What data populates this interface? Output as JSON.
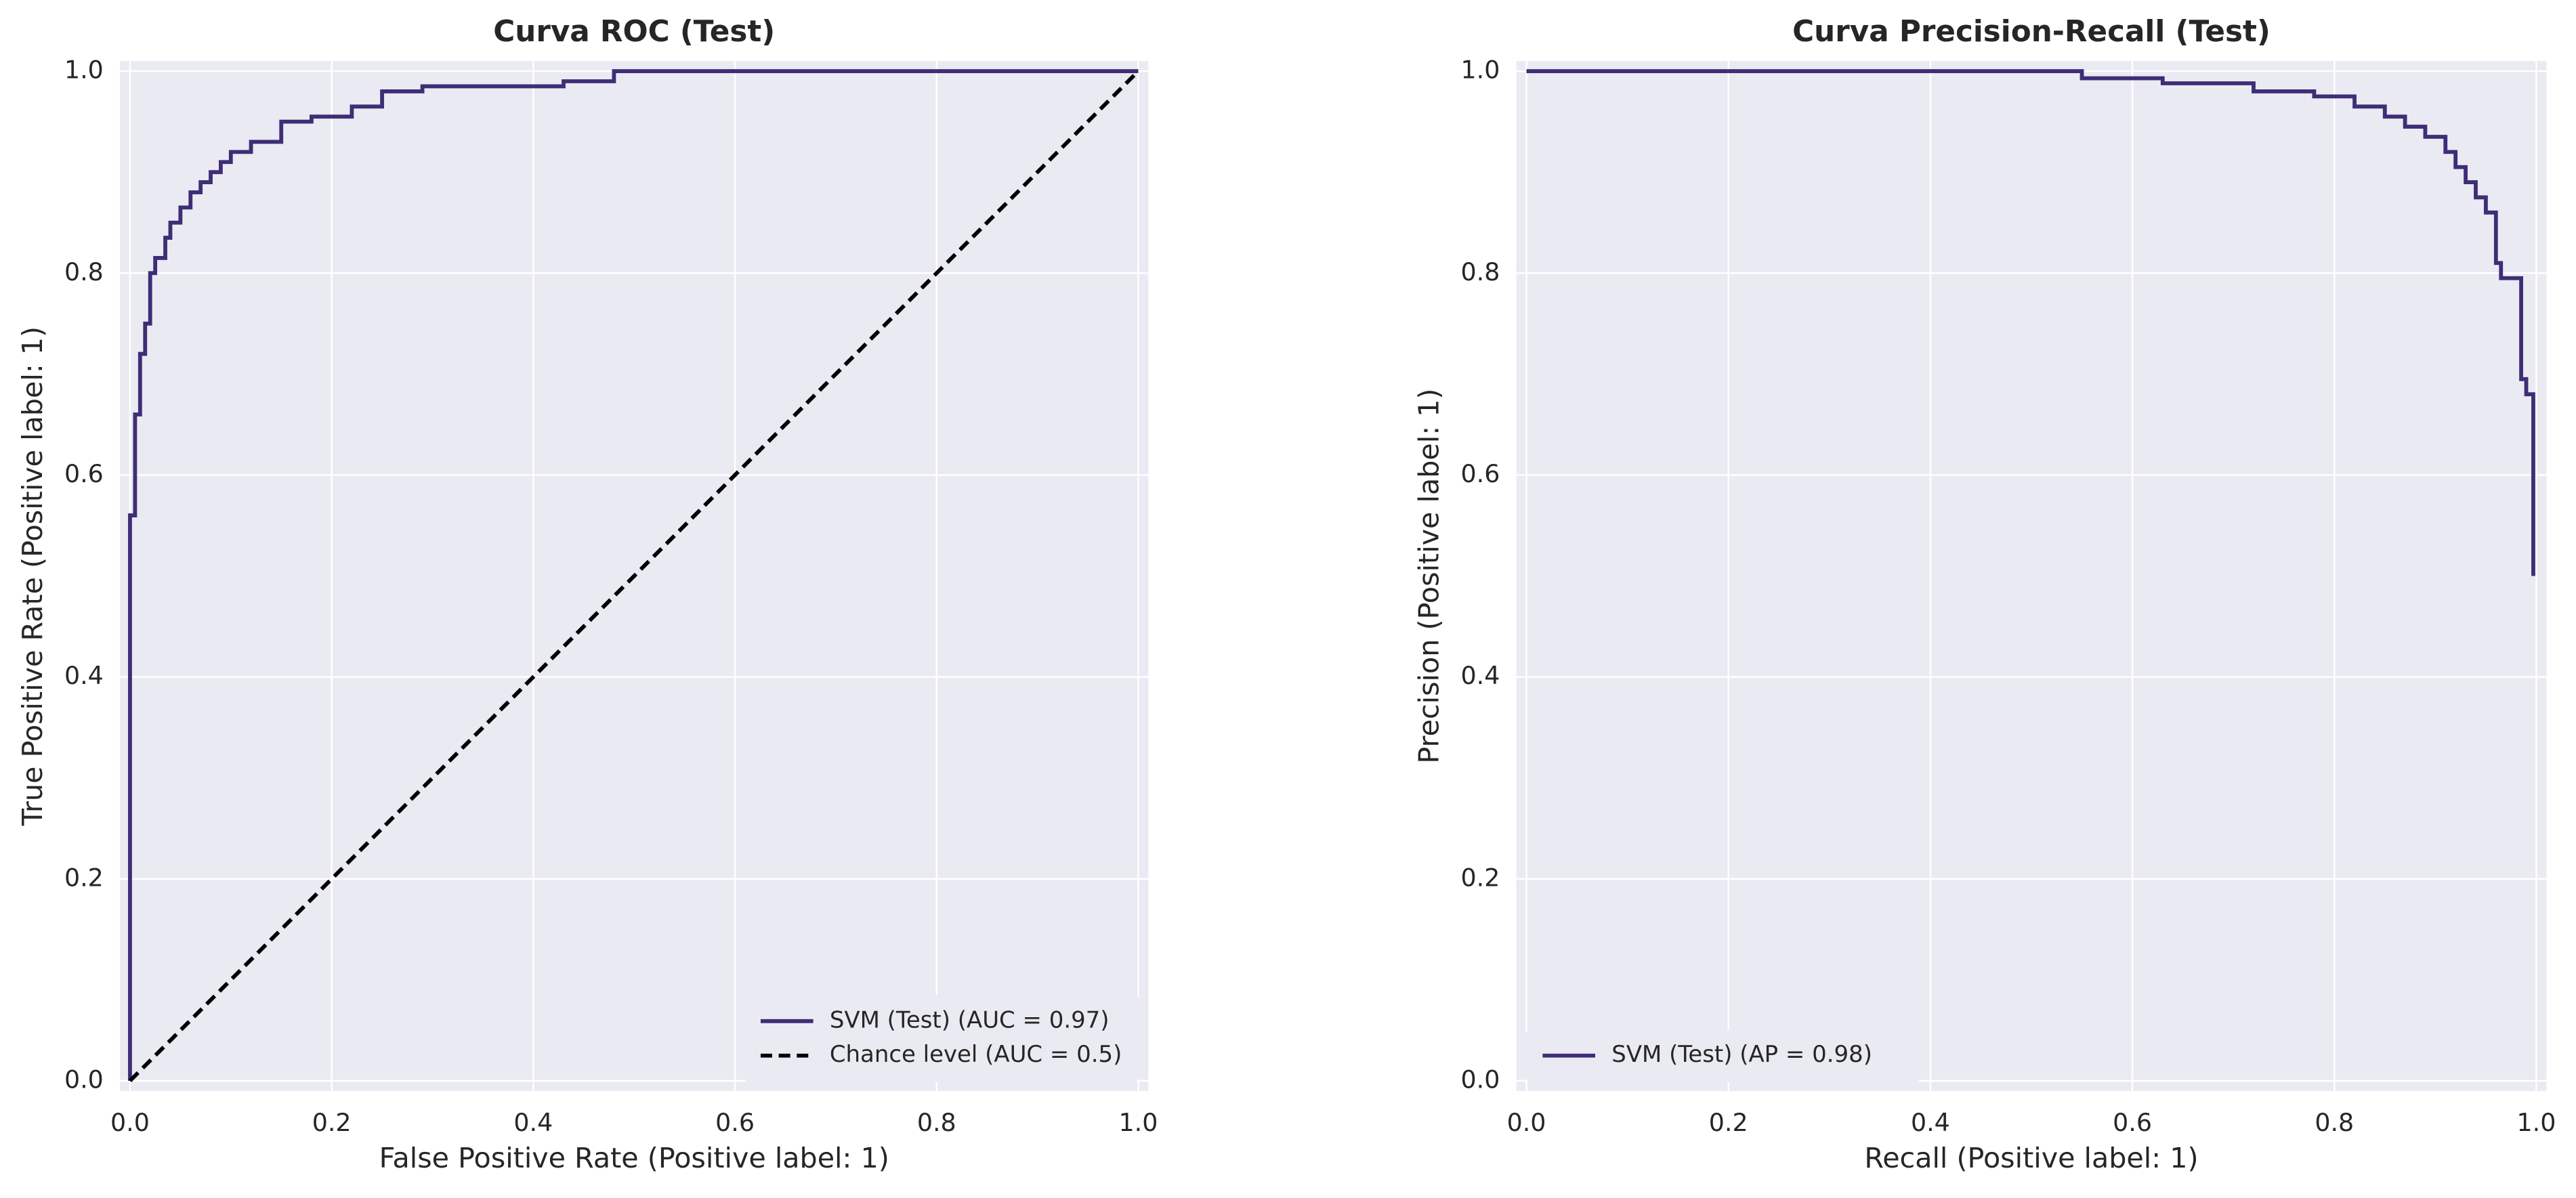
{
  "chart_data": [
    {
      "type": "line",
      "title": "Curva ROC (Test)",
      "xlabel": "False Positive Rate (Positive label: 1)",
      "ylabel": "True Positive Rate (Positive label: 1)",
      "xlim": [
        -0.01,
        1.01
      ],
      "ylim": [
        -0.01,
        1.01
      ],
      "xticks": [
        {
          "value": 0,
          "label": "0.0"
        },
        0.2,
        0.4,
        0.6,
        0.8,
        {
          "value": 1,
          "label": "1.0"
        }
      ],
      "yticks": [
        {
          "value": 0,
          "label": "0.0"
        },
        0.2,
        0.4,
        0.6,
        0.8,
        {
          "value": 1,
          "label": "1.0"
        }
      ],
      "grid": true,
      "legend": "lower right",
      "series": [
        {
          "name": "SVM (Test) (AUC = 0.97)",
          "color": "#3f2d76",
          "linestyle": "solid",
          "x": [
            0,
            0,
            0.005,
            0.005,
            0.01,
            0.01,
            0.015,
            0.015,
            0.02,
            0.02,
            0.025,
            0.025,
            0.035,
            0.035,
            0.04,
            0.04,
            0.05,
            0.05,
            0.06,
            0.06,
            0.07,
            0.07,
            0.08,
            0.08,
            0.09,
            0.09,
            0.1,
            0.1,
            0.12,
            0.12,
            0.15,
            0.15,
            0.18,
            0.18,
            0.22,
            0.22,
            0.25,
            0.25,
            0.29,
            0.29,
            0.43,
            0.43,
            0.48,
            0.48,
            1
          ],
          "values": [
            0,
            0.56,
            0.56,
            0.66,
            0.66,
            0.72,
            0.72,
            0.75,
            0.75,
            0.8,
            0.8,
            0.815,
            0.815,
            0.835,
            0.835,
            0.85,
            0.85,
            0.865,
            0.865,
            0.88,
            0.88,
            0.89,
            0.89,
            0.9,
            0.9,
            0.91,
            0.91,
            0.92,
            0.92,
            0.93,
            0.93,
            0.95,
            0.95,
            0.955,
            0.955,
            0.965,
            0.965,
            0.98,
            0.98,
            0.985,
            0.985,
            0.99,
            0.99,
            1,
            1
          ]
        },
        {
          "name": "Chance level (AUC = 0.5)",
          "color": "#000000",
          "linestyle": "dashed",
          "x": [
            0,
            1
          ],
          "values": [
            0,
            1
          ]
        }
      ]
    },
    {
      "type": "line",
      "title": "Curva Precision-Recall (Test)",
      "xlabel": "Recall (Positive label: 1)",
      "ylabel": "Precision (Positive label: 1)",
      "xlim": [
        -0.01,
        1.01
      ],
      "ylim": [
        -0.01,
        1.01
      ],
      "xticks": [
        {
          "value": 0,
          "label": "0.0"
        },
        0.2,
        0.4,
        0.6,
        0.8,
        {
          "value": 1,
          "label": "1.0"
        }
      ],
      "yticks": [
        {
          "value": 0,
          "label": "0.0"
        },
        0.2,
        0.4,
        0.6,
        0.8,
        {
          "value": 1,
          "label": "1.0"
        }
      ],
      "grid": true,
      "legend": "lower left",
      "series": [
        {
          "name": "SVM (Test) (AP = 0.98)",
          "color": "#3f2d76",
          "linestyle": "solid",
          "x": [
            0,
            0.55,
            0.55,
            0.63,
            0.63,
            0.72,
            0.72,
            0.78,
            0.78,
            0.82,
            0.82,
            0.85,
            0.85,
            0.87,
            0.87,
            0.89,
            0.89,
            0.91,
            0.91,
            0.92,
            0.92,
            0.93,
            0.93,
            0.94,
            0.94,
            0.95,
            0.95,
            0.96,
            0.96,
            0.965,
            0.965,
            0.985,
            0.985,
            0.99,
            0.99,
            0.997,
            0.997
          ],
          "values": [
            1,
            1,
            0.993,
            0.993,
            0.988,
            0.988,
            0.98,
            0.98,
            0.975,
            0.975,
            0.965,
            0.965,
            0.955,
            0.955,
            0.945,
            0.945,
            0.935,
            0.935,
            0.92,
            0.92,
            0.905,
            0.905,
            0.89,
            0.89,
            0.875,
            0.875,
            0.86,
            0.86,
            0.81,
            0.81,
            0.795,
            0.795,
            0.695,
            0.695,
            0.68,
            0.68,
            0.5
          ]
        }
      ]
    }
  ]
}
